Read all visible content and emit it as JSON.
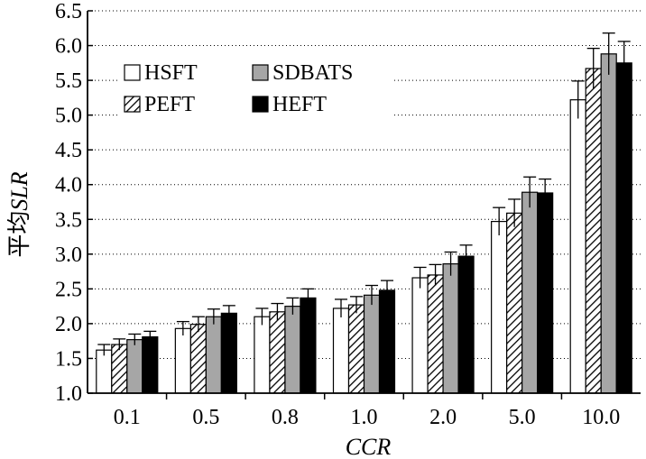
{
  "chart_data": {
    "type": "bar",
    "xlabel": "CCR",
    "ylabel_prefix": "平均",
    "ylabel_suffix": "SLR",
    "ylim": [
      1.0,
      6.5
    ],
    "yticks": [
      "1.0",
      "1.5",
      "2.0",
      "2.5",
      "3.0",
      "3.5",
      "4.0",
      "4.5",
      "5.0",
      "5.5",
      "6.0",
      "6.5"
    ],
    "categories": [
      "0.1",
      "0.5",
      "0.8",
      "1.0",
      "2.0",
      "5.0",
      "10.0"
    ],
    "grid": "horizontal dotted",
    "legend_position": "top-left",
    "series": [
      {
        "name": "HSFT",
        "fill": "#ffffff",
        "pattern": "none",
        "values": [
          1.62,
          1.93,
          2.1,
          2.22,
          2.66,
          3.47,
          5.22
        ],
        "errors": [
          0.08,
          0.1,
          0.12,
          0.13,
          0.15,
          0.2,
          0.27
        ]
      },
      {
        "name": "PEFT",
        "fill": "#ffffff",
        "pattern": "hatch",
        "values": [
          1.7,
          1.99,
          2.17,
          2.27,
          2.7,
          3.59,
          5.67
        ],
        "errors": [
          0.08,
          0.11,
          0.12,
          0.12,
          0.15,
          0.2,
          0.29
        ]
      },
      {
        "name": "SDBATS",
        "fill": "#a6a6a6",
        "pattern": "none",
        "values": [
          1.77,
          2.1,
          2.25,
          2.41,
          2.86,
          3.89,
          5.88
        ],
        "errors": [
          0.08,
          0.11,
          0.12,
          0.14,
          0.17,
          0.22,
          0.3
        ]
      },
      {
        "name": "HEFT",
        "fill": "#000000",
        "pattern": "none",
        "values": [
          1.81,
          2.15,
          2.37,
          2.48,
          2.97,
          3.88,
          5.75
        ],
        "errors": [
          0.08,
          0.11,
          0.13,
          0.14,
          0.16,
          0.2,
          0.31
        ]
      }
    ]
  }
}
